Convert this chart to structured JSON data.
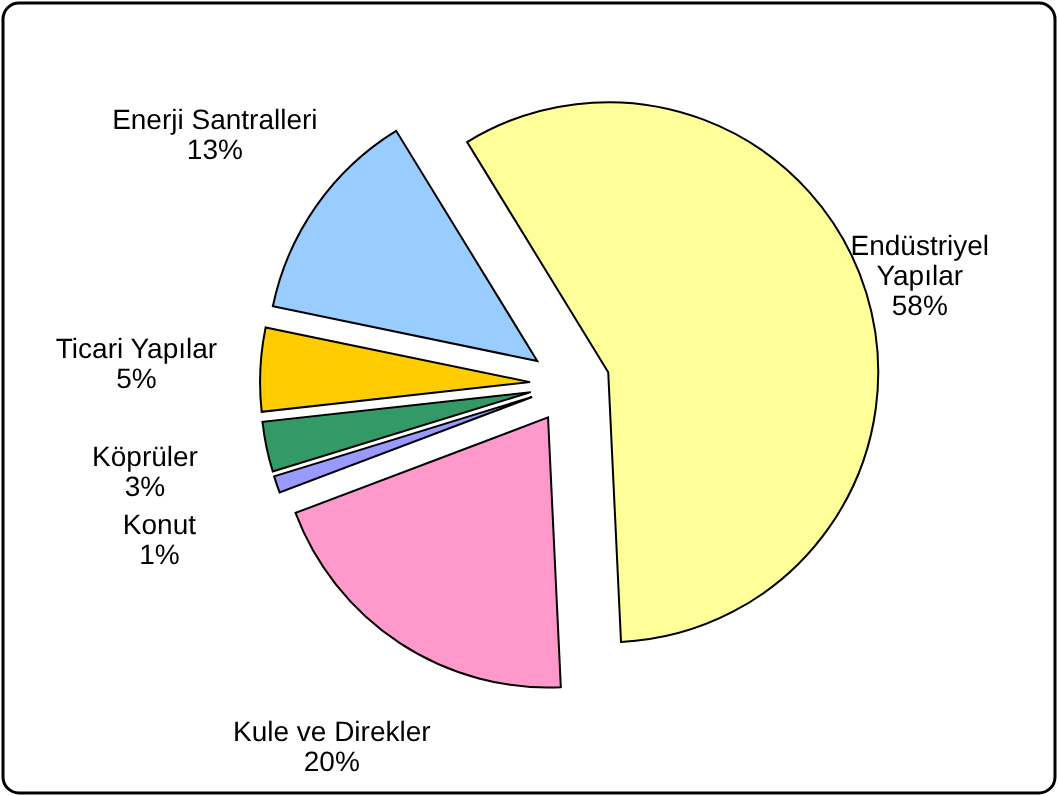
{
  "chart_data": {
    "type": "pie",
    "categories": [
      "Endüstriyel Yapılar",
      "Kule ve Direkler",
      "Konut",
      "Köprüler",
      "Ticari Yapılar",
      "Enerji Santralleri"
    ],
    "values": [
      58,
      20,
      1,
      3,
      5,
      13
    ],
    "value_labels": [
      "58%",
      "20%",
      "1%",
      "3%",
      "5%",
      "13%"
    ],
    "colors": [
      "#ffff99",
      "#ff99cc",
      "#9999ff",
      "#339966",
      "#ffcc00",
      "#99ccff"
    ]
  }
}
